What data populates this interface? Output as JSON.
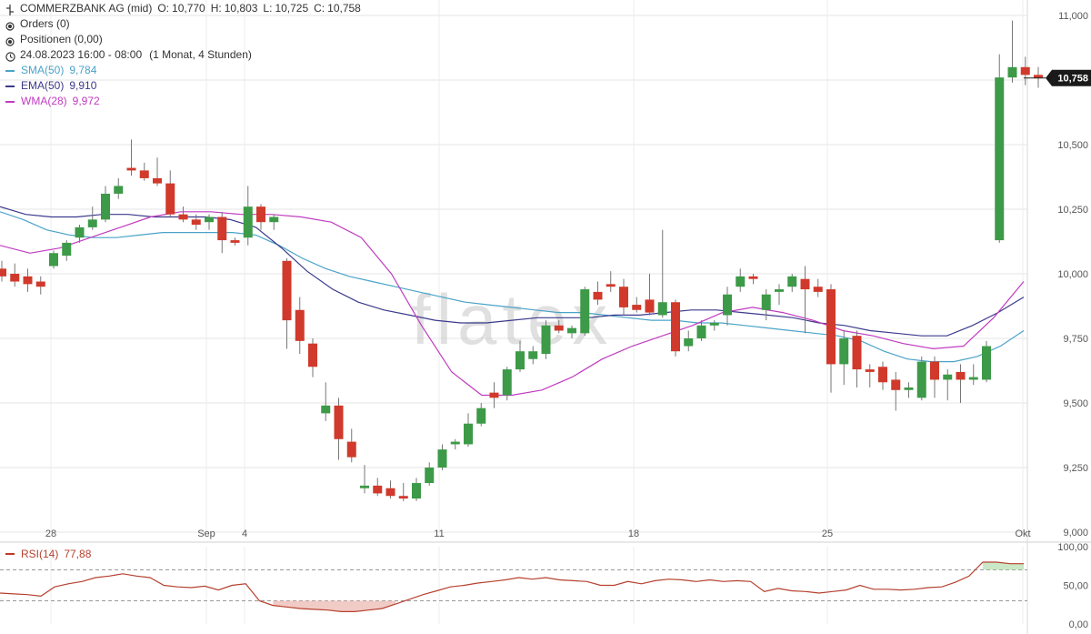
{
  "header": {
    "instrument": "COMMERZBANK AG (mid)",
    "ohlc": {
      "o_label": "O:",
      "o": "10,770",
      "h_label": "H:",
      "h": "10,803",
      "l_label": "L:",
      "l": "10,725",
      "c_label": "C:",
      "c": "10,758"
    },
    "orders": "Orders (0)",
    "positions": "Positionen (0,00)",
    "timerange": "24.08.2023 16:00 - 08:00",
    "interval": "(1 Monat, 4 Stunden)"
  },
  "indicators": {
    "sma": {
      "label": "SMA(50)",
      "value": "9,784",
      "color": "#4aa3c8"
    },
    "ema": {
      "label": "EMA(50)",
      "value": "9,910",
      "color": "#3b3a8c"
    },
    "wma": {
      "label": "WMA(28)",
      "value": "9,972",
      "color": "#c03cc0"
    }
  },
  "rsi": {
    "label": "RSI(14)",
    "value": "77,88",
    "color": "#b5412e"
  },
  "watermark": "flatex",
  "current_price_label": "10,758",
  "chart_data": {
    "type": "candlestick",
    "y_axis": {
      "min": 9.0,
      "max": 11.0,
      "ticks": [
        "9,000",
        "9,250",
        "9,500",
        "9,750",
        "10,000",
        "10,250",
        "10,500",
        "10,750",
        "11,000"
      ]
    },
    "x_axis_labels": [
      "28",
      "Sep",
      "4",
      "11",
      "18",
      "25",
      "Okt"
    ],
    "rsi_axis": {
      "min": 0,
      "max": 100,
      "ticks": [
        "0,00",
        "50,00",
        "100,00"
      ],
      "overbought": 70,
      "oversold": 30
    },
    "candles": [
      {
        "o": 10.02,
        "h": 10.05,
        "l": 9.97,
        "c": 9.99
      },
      {
        "o": 10.0,
        "h": 10.04,
        "l": 9.95,
        "c": 9.97
      },
      {
        "o": 9.99,
        "h": 10.02,
        "l": 9.93,
        "c": 9.96
      },
      {
        "o": 9.97,
        "h": 9.99,
        "l": 9.92,
        "c": 9.95
      },
      {
        "o": 10.03,
        "h": 10.09,
        "l": 10.02,
        "c": 10.08
      },
      {
        "o": 10.07,
        "h": 10.13,
        "l": 10.05,
        "c": 10.12
      },
      {
        "o": 10.14,
        "h": 10.19,
        "l": 10.12,
        "c": 10.18
      },
      {
        "o": 10.18,
        "h": 10.26,
        "l": 10.17,
        "c": 10.21
      },
      {
        "o": 10.21,
        "h": 10.34,
        "l": 10.2,
        "c": 10.31
      },
      {
        "o": 10.31,
        "h": 10.37,
        "l": 10.29,
        "c": 10.34
      },
      {
        "o": 10.41,
        "h": 10.52,
        "l": 10.38,
        "c": 10.4
      },
      {
        "o": 10.4,
        "h": 10.43,
        "l": 10.36,
        "c": 10.37
      },
      {
        "o": 10.37,
        "h": 10.45,
        "l": 10.34,
        "c": 10.35
      },
      {
        "o": 10.35,
        "h": 10.4,
        "l": 10.22,
        "c": 10.23
      },
      {
        "o": 10.23,
        "h": 10.26,
        "l": 10.2,
        "c": 10.21
      },
      {
        "o": 10.21,
        "h": 10.23,
        "l": 10.17,
        "c": 10.19
      },
      {
        "o": 10.2,
        "h": 10.23,
        "l": 10.17,
        "c": 10.22
      },
      {
        "o": 10.22,
        "h": 10.24,
        "l": 10.08,
        "c": 10.13
      },
      {
        "o": 10.13,
        "h": 10.14,
        "l": 10.11,
        "c": 10.12
      },
      {
        "o": 10.14,
        "h": 10.34,
        "l": 10.11,
        "c": 10.26
      },
      {
        "o": 10.26,
        "h": 10.27,
        "l": 10.17,
        "c": 10.2
      },
      {
        "o": 10.2,
        "h": 10.23,
        "l": 10.17,
        "c": 10.22
      },
      {
        "o": 10.05,
        "h": 10.06,
        "l": 9.71,
        "c": 9.82
      },
      {
        "o": 9.86,
        "h": 9.91,
        "l": 9.69,
        "c": 9.74
      },
      {
        "o": 9.73,
        "h": 9.75,
        "l": 9.6,
        "c": 9.64
      },
      {
        "o": 9.46,
        "h": 9.58,
        "l": 9.43,
        "c": 9.49
      },
      {
        "o": 9.49,
        "h": 9.52,
        "l": 9.28,
        "c": 9.36
      },
      {
        "o": 9.35,
        "h": 9.4,
        "l": 9.27,
        "c": 9.29
      },
      {
        "o": 9.17,
        "h": 9.26,
        "l": 9.15,
        "c": 9.18
      },
      {
        "o": 9.18,
        "h": 9.21,
        "l": 9.14,
        "c": 9.15
      },
      {
        "o": 9.17,
        "h": 9.2,
        "l": 9.13,
        "c": 9.14
      },
      {
        "o": 9.14,
        "h": 9.19,
        "l": 9.12,
        "c": 9.13
      },
      {
        "o": 9.13,
        "h": 9.21,
        "l": 9.12,
        "c": 9.19
      },
      {
        "o": 9.19,
        "h": 9.27,
        "l": 9.18,
        "c": 9.25
      },
      {
        "o": 9.25,
        "h": 9.34,
        "l": 9.24,
        "c": 9.32
      },
      {
        "o": 9.34,
        "h": 9.36,
        "l": 9.32,
        "c": 9.35
      },
      {
        "o": 9.34,
        "h": 9.46,
        "l": 9.33,
        "c": 9.42
      },
      {
        "o": 9.42,
        "h": 9.5,
        "l": 9.41,
        "c": 9.48
      },
      {
        "o": 9.54,
        "h": 9.58,
        "l": 9.48,
        "c": 9.52
      },
      {
        "o": 9.53,
        "h": 9.64,
        "l": 9.51,
        "c": 9.63
      },
      {
        "o": 9.63,
        "h": 9.74,
        "l": 9.62,
        "c": 9.7
      },
      {
        "o": 9.67,
        "h": 9.72,
        "l": 9.65,
        "c": 9.7
      },
      {
        "o": 9.69,
        "h": 9.82,
        "l": 9.67,
        "c": 9.8
      },
      {
        "o": 9.8,
        "h": 9.82,
        "l": 9.77,
        "c": 9.78
      },
      {
        "o": 9.77,
        "h": 9.8,
        "l": 9.75,
        "c": 9.79
      },
      {
        "o": 9.77,
        "h": 9.95,
        "l": 9.76,
        "c": 9.94
      },
      {
        "o": 9.93,
        "h": 9.97,
        "l": 9.88,
        "c": 9.9
      },
      {
        "o": 9.96,
        "h": 10.01,
        "l": 9.93,
        "c": 9.95
      },
      {
        "o": 9.95,
        "h": 9.98,
        "l": 9.84,
        "c": 9.87
      },
      {
        "o": 9.88,
        "h": 9.91,
        "l": 9.85,
        "c": 9.86
      },
      {
        "o": 9.9,
        "h": 10.0,
        "l": 9.84,
        "c": 9.85
      },
      {
        "o": 9.84,
        "h": 10.17,
        "l": 9.83,
        "c": 9.89
      },
      {
        "o": 9.89,
        "h": 9.9,
        "l": 9.68,
        "c": 9.7
      },
      {
        "o": 9.72,
        "h": 9.78,
        "l": 9.7,
        "c": 9.75
      },
      {
        "o": 9.75,
        "h": 9.82,
        "l": 9.74,
        "c": 9.8
      },
      {
        "o": 9.8,
        "h": 9.82,
        "l": 9.78,
        "c": 9.81
      },
      {
        "o": 9.84,
        "h": 9.95,
        "l": 9.8,
        "c": 9.92
      },
      {
        "o": 9.95,
        "h": 10.02,
        "l": 9.93,
        "c": 9.99
      },
      {
        "o": 9.99,
        "h": 10.0,
        "l": 9.96,
        "c": 9.98
      },
      {
        "o": 9.86,
        "h": 9.94,
        "l": 9.82,
        "c": 9.92
      },
      {
        "o": 9.93,
        "h": 9.96,
        "l": 9.88,
        "c": 9.94
      },
      {
        "o": 9.95,
        "h": 10.0,
        "l": 9.93,
        "c": 9.99
      },
      {
        "o": 9.98,
        "h": 10.03,
        "l": 9.77,
        "c": 9.94
      },
      {
        "o": 9.95,
        "h": 9.98,
        "l": 9.91,
        "c": 9.93
      },
      {
        "o": 9.94,
        "h": 9.96,
        "l": 9.54,
        "c": 9.65
      },
      {
        "o": 9.65,
        "h": 9.78,
        "l": 9.57,
        "c": 9.75
      },
      {
        "o": 9.76,
        "h": 9.78,
        "l": 9.56,
        "c": 9.63
      },
      {
        "o": 9.63,
        "h": 9.65,
        "l": 9.56,
        "c": 9.62
      },
      {
        "o": 9.64,
        "h": 9.66,
        "l": 9.55,
        "c": 9.58
      },
      {
        "o": 9.59,
        "h": 9.62,
        "l": 9.47,
        "c": 9.55
      },
      {
        "o": 9.55,
        "h": 9.58,
        "l": 9.52,
        "c": 9.56
      },
      {
        "o": 9.52,
        "h": 9.68,
        "l": 9.51,
        "c": 9.66
      },
      {
        "o": 9.66,
        "h": 9.68,
        "l": 9.52,
        "c": 9.59
      },
      {
        "o": 9.59,
        "h": 9.63,
        "l": 9.51,
        "c": 9.61
      },
      {
        "o": 9.62,
        "h": 9.65,
        "l": 9.5,
        "c": 9.59
      },
      {
        "o": 9.59,
        "h": 9.65,
        "l": 9.57,
        "c": 9.6
      },
      {
        "o": 9.59,
        "h": 9.74,
        "l": 9.58,
        "c": 9.72
      },
      {
        "o": 10.13,
        "h": 10.85,
        "l": 10.12,
        "c": 10.76
      },
      {
        "o": 10.76,
        "h": 10.98,
        "l": 10.74,
        "c": 10.8
      },
      {
        "o": 10.8,
        "h": 10.84,
        "l": 10.73,
        "c": 10.77
      },
      {
        "o": 10.77,
        "h": 10.8,
        "l": 10.72,
        "c": 10.758
      }
    ],
    "sma50": [
      10.24,
      10.21,
      10.17,
      10.15,
      10.14,
      10.14,
      10.15,
      10.16,
      10.16,
      10.16,
      10.16,
      10.15,
      10.11,
      10.06,
      10.02,
      9.99,
      9.97,
      9.95,
      9.93,
      9.91,
      9.89,
      9.88,
      9.87,
      9.86,
      9.85,
      9.85,
      9.84,
      9.83,
      9.82,
      9.82,
      9.81,
      9.81,
      9.8,
      9.79,
      9.78,
      9.77,
      9.76,
      9.74,
      9.7,
      9.67,
      9.66,
      9.66,
      9.68,
      9.72,
      9.78
    ],
    "ema50": [
      10.26,
      10.23,
      10.22,
      10.22,
      10.23,
      10.23,
      10.22,
      10.22,
      10.22,
      10.21,
      10.18,
      10.1,
      10.01,
      9.94,
      9.89,
      9.86,
      9.84,
      9.82,
      9.81,
      9.81,
      9.82,
      9.83,
      9.83,
      9.83,
      9.84,
      9.84,
      9.85,
      9.86,
      9.86,
      9.85,
      9.84,
      9.83,
      9.81,
      9.8,
      9.78,
      9.77,
      9.76,
      9.76,
      9.8,
      9.85,
      9.91
    ],
    "wma28": [
      10.11,
      10.08,
      10.1,
      10.14,
      10.18,
      10.22,
      10.24,
      10.24,
      10.23,
      10.23,
      10.22,
      10.2,
      10.14,
      10.0,
      9.8,
      9.62,
      9.53,
      9.53,
      9.55,
      9.6,
      9.67,
      9.72,
      9.76,
      9.8,
      9.85,
      9.87,
      9.85,
      9.82,
      9.78,
      9.76,
      9.73,
      9.71,
      9.72,
      9.83,
      9.97
    ],
    "rsi": [
      40,
      39,
      38,
      36,
      48,
      52,
      55,
      60,
      62,
      65,
      62,
      60,
      50,
      48,
      47,
      49,
      44,
      50,
      52,
      30,
      24,
      22,
      20,
      19,
      18,
      16,
      16,
      18,
      20,
      26,
      32,
      38,
      43,
      48,
      50,
      53,
      55,
      57,
      60,
      58,
      60,
      57,
      56,
      55,
      50,
      50,
      55,
      52,
      56,
      58,
      57,
      55,
      57,
      55,
      56,
      55,
      42,
      46,
      43,
      42,
      40,
      42,
      44,
      50,
      45,
      45,
      44,
      45,
      47,
      48,
      54,
      62,
      80,
      80,
      78,
      78
    ]
  }
}
